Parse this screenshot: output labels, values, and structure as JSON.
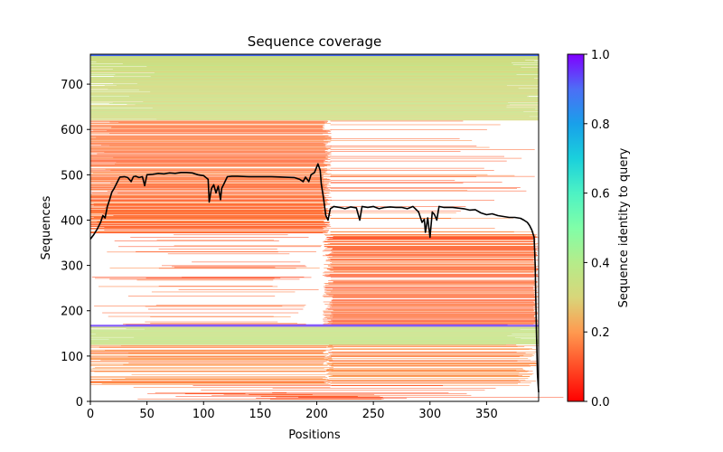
{
  "chart_data": {
    "type": "heatmap",
    "title": "Sequence coverage",
    "xlabel": "Positions",
    "ylabel": "Sequences",
    "xlim": [
      0,
      396
    ],
    "ylim": [
      0,
      766
    ],
    "xticks": [
      0,
      50,
      100,
      150,
      200,
      250,
      300,
      350
    ],
    "yticks": [
      0,
      100,
      200,
      300,
      400,
      500,
      600,
      700
    ],
    "colorbar": {
      "label": "Sequence identity to query",
      "colormap": "rainbow_r",
      "range": [
        0.0,
        1.0
      ],
      "ticks": [
        "0.0",
        "0.2",
        "0.4",
        "0.6",
        "0.8",
        "1.0"
      ]
    },
    "sequence_bands": [
      {
        "name": "bottom-low-identity",
        "rows": [
          0,
          35
        ],
        "identity": 0.12,
        "coverage": "sparse-full"
      },
      {
        "name": "bottom-mid",
        "rows": [
          35,
          125
        ],
        "identity": 0.18,
        "coverage": "mixed-left-right"
      },
      {
        "name": "bottom-high-identity",
        "rows": [
          125,
          165
        ],
        "identity": 0.35,
        "coverage": "full"
      },
      {
        "name": "query-block",
        "rows": [
          165,
          170
        ],
        "identity": 0.95,
        "coverage": "full"
      },
      {
        "name": "middle-c-terminal",
        "rows": [
          170,
          370
        ],
        "identity": 0.14,
        "coverage": "c-terminal"
      },
      {
        "name": "middle-n-terminal",
        "rows": [
          370,
          620
        ],
        "identity": 0.15,
        "coverage": "n-terminal"
      },
      {
        "name": "top-high-identity",
        "rows": [
          620,
          762
        ],
        "identity": 0.33,
        "coverage": "full"
      },
      {
        "name": "top-query",
        "rows": [
          762,
          766
        ],
        "identity": 0.9,
        "coverage": "full"
      }
    ],
    "coverage_line": {
      "name": "coverage",
      "color": "#000000",
      "x": [
        0,
        3,
        6,
        9,
        11,
        13,
        15,
        17,
        19,
        21,
        23,
        26,
        30,
        33,
        36,
        38,
        40,
        43,
        46,
        48,
        50,
        55,
        60,
        65,
        70,
        75,
        80,
        85,
        90,
        95,
        100,
        104,
        105,
        107,
        109,
        111,
        113,
        115,
        116,
        118,
        121,
        125,
        130,
        140,
        150,
        160,
        170,
        180,
        185,
        188,
        190,
        193,
        195,
        198,
        201,
        203,
        204,
        206,
        208,
        210,
        212,
        215,
        220,
        225,
        230,
        235,
        238,
        240,
        245,
        250,
        255,
        260,
        265,
        270,
        275,
        280,
        285,
        290,
        293,
        295,
        296,
        298,
        300,
        302,
        304,
        306,
        308,
        312,
        320,
        330,
        335,
        340,
        345,
        350,
        355,
        360,
        365,
        370,
        375,
        380,
        383,
        386,
        388,
        390,
        392,
        393,
        394,
        395,
        396
      ],
      "y": [
        358,
        368,
        380,
        395,
        410,
        405,
        430,
        445,
        462,
        470,
        480,
        495,
        496,
        494,
        485,
        496,
        497,
        494,
        496,
        476,
        500,
        501,
        503,
        502,
        504,
        503,
        505,
        505,
        504,
        500,
        498,
        490,
        440,
        470,
        478,
        460,
        475,
        445,
        470,
        480,
        496,
        497,
        497,
        496,
        496,
        496,
        495,
        494,
        490,
        485,
        495,
        485,
        500,
        505,
        524,
        510,
        480,
        448,
        410,
        400,
        425,
        430,
        428,
        425,
        429,
        427,
        400,
        430,
        428,
        430,
        425,
        428,
        429,
        428,
        428,
        425,
        430,
        418,
        395,
        402,
        373,
        405,
        362,
        418,
        412,
        400,
        430,
        428,
        428,
        425,
        422,
        423,
        416,
        412,
        414,
        410,
        408,
        406,
        406,
        404,
        400,
        395,
        388,
        378,
        362,
        300,
        160,
        60,
        20
      ]
    }
  }
}
